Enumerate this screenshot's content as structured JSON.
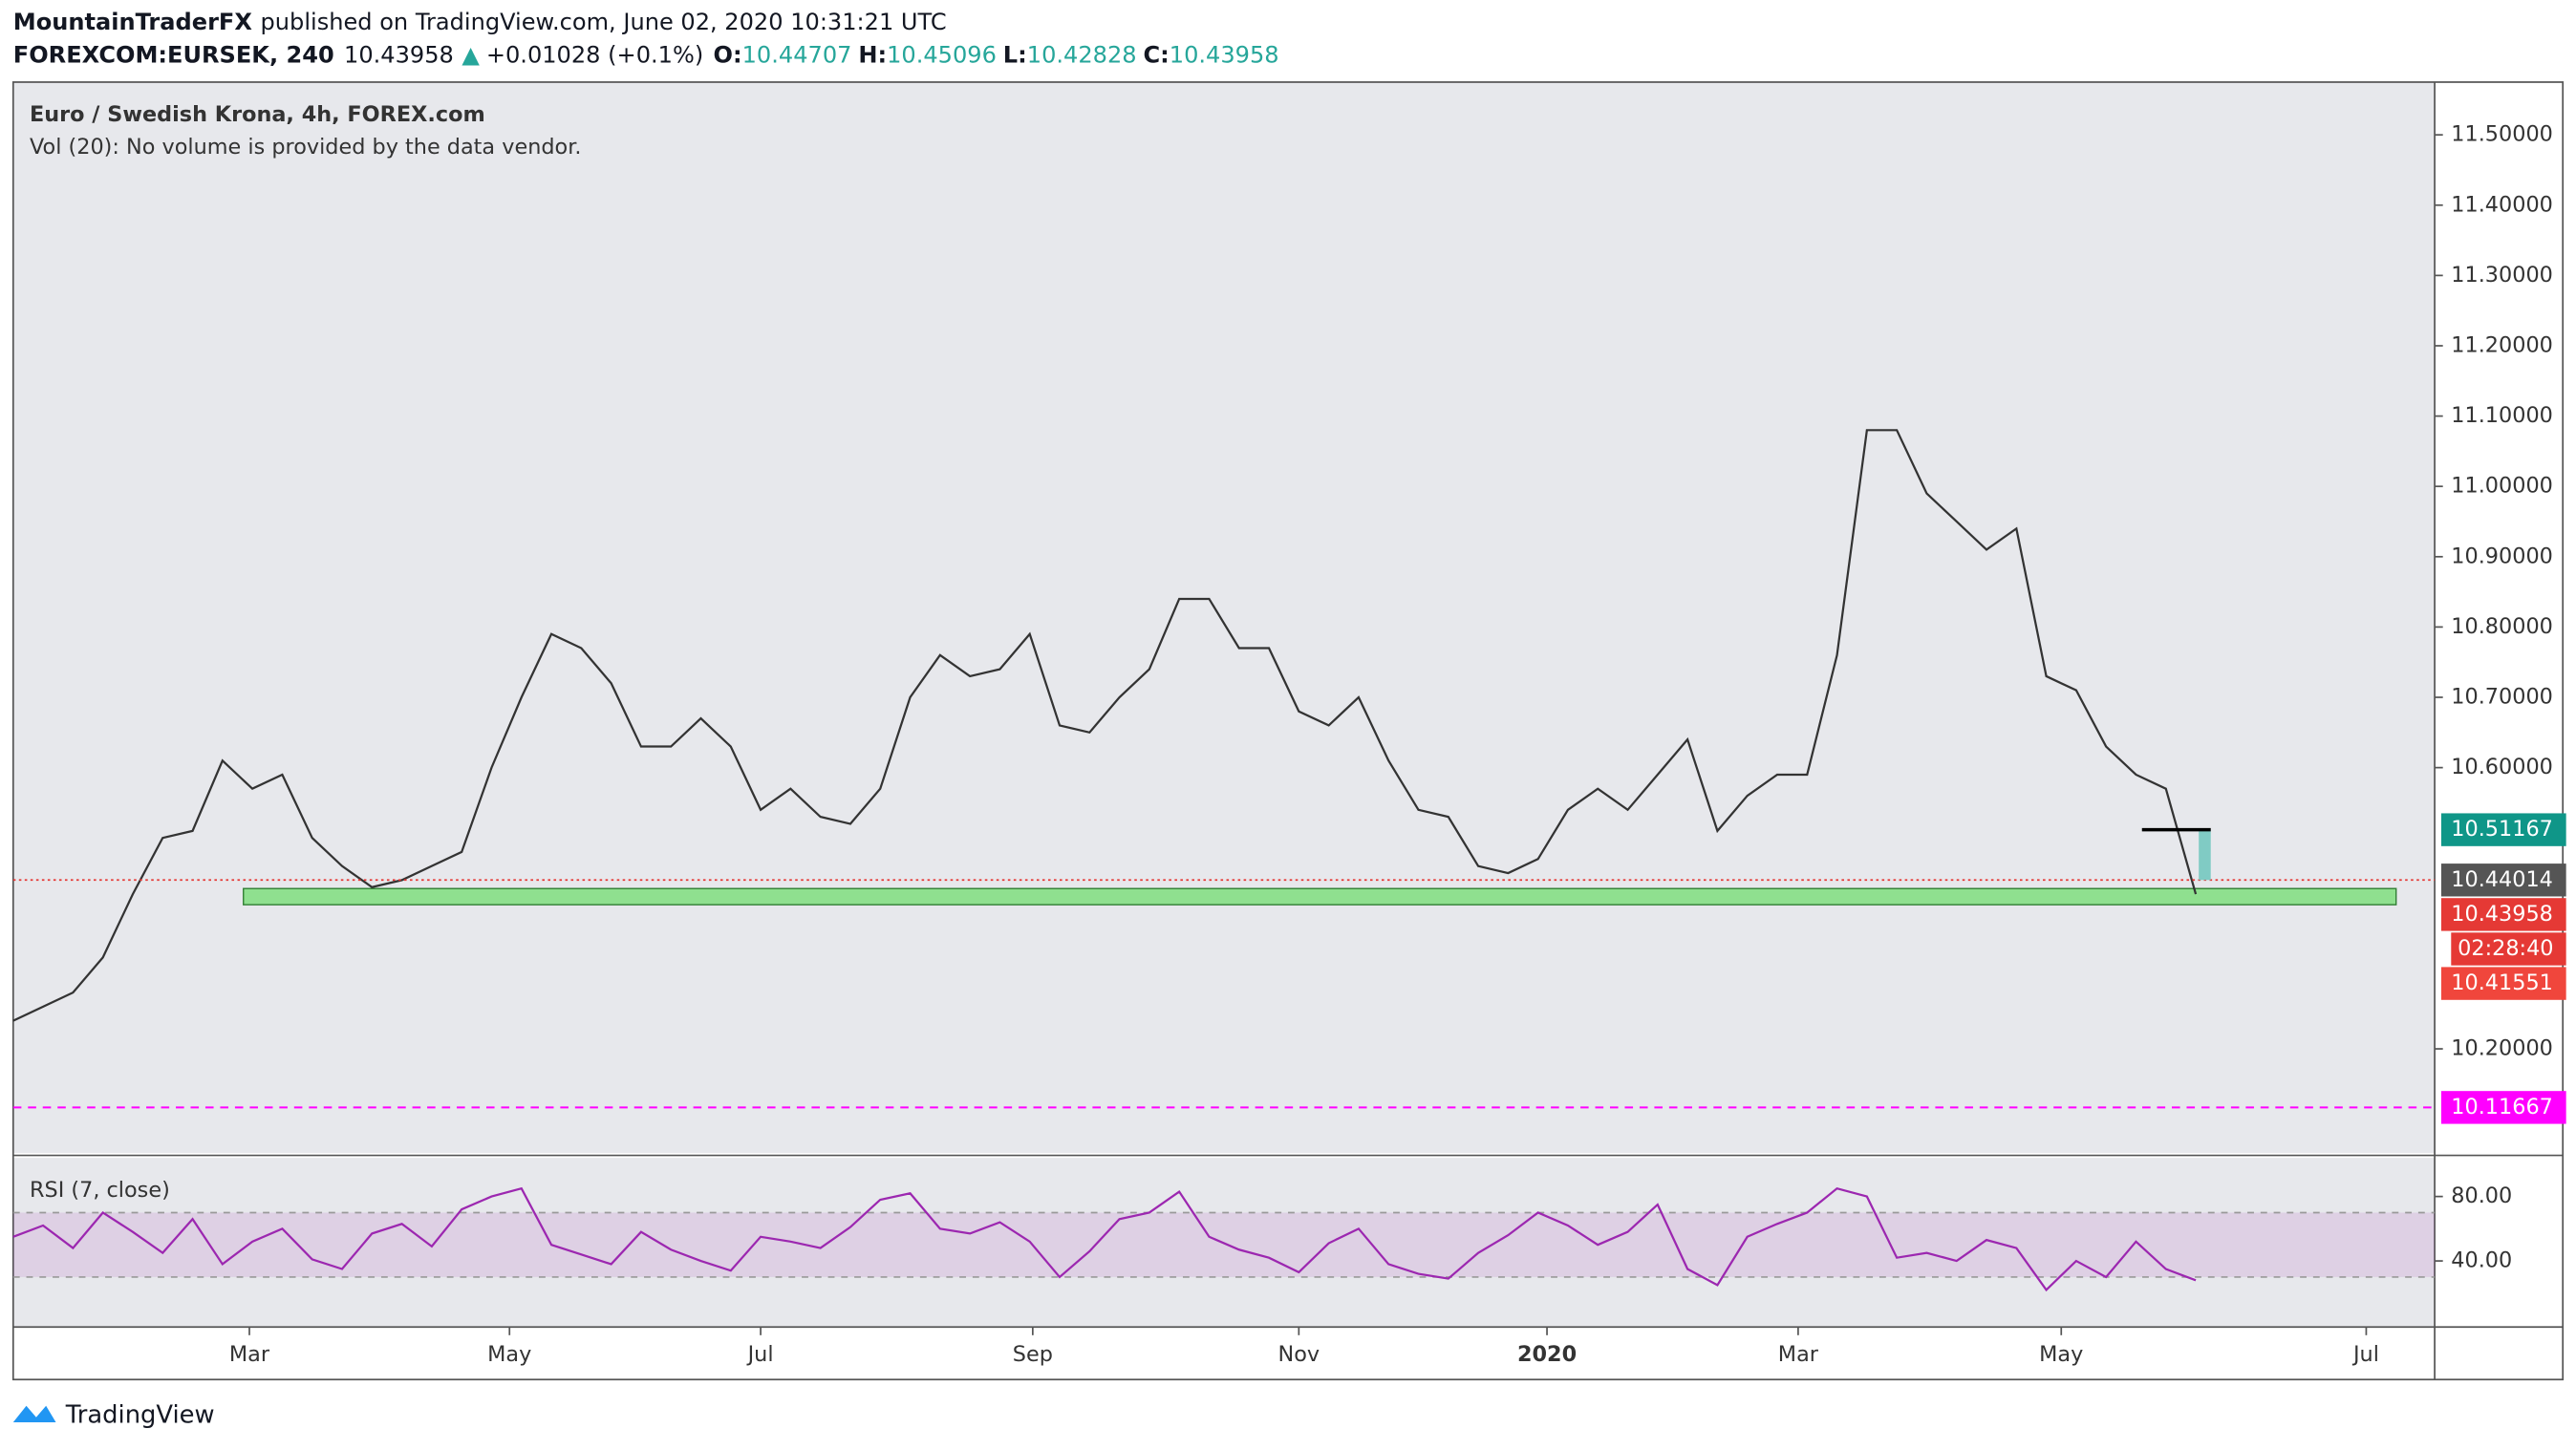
{
  "header": {
    "publisher": "MountainTraderFX",
    "published": "published on TradingView.com, June 02, 2020 10:31:21 UTC",
    "symbol": "FOREXCOM:EURSEK, 240",
    "last": "10.43958",
    "arrow": "▲",
    "change": "+0.01028 (+0.1%)",
    "o_label": "O:",
    "o": "10.44707",
    "h_label": "H:",
    "h": "10.45096",
    "l_label": "L:",
    "l": "10.42828",
    "c_label": "C:",
    "c": "10.43958"
  },
  "footer": {
    "brand": "TradingView"
  },
  "chart_data": [
    {
      "type": "line",
      "title": "Euro / Swedish Krona, 4h, FOREX.com",
      "subtitle": "Vol (20): No volume is provided by the data vendor.",
      "x": [
        0,
        1,
        2,
        3,
        4,
        5,
        6,
        7,
        8,
        9,
        10,
        11,
        12,
        13,
        14,
        15,
        16,
        17,
        18,
        19,
        20,
        21,
        22,
        23,
        24,
        25,
        26,
        27,
        28,
        29,
        30,
        31,
        32,
        33,
        34,
        35,
        36,
        37,
        38,
        39,
        40,
        41,
        42,
        43,
        44,
        45,
        46,
        47,
        48,
        49,
        50,
        51,
        52,
        53,
        54,
        55,
        56,
        57,
        58,
        59,
        60,
        61,
        62,
        63,
        64,
        65,
        66,
        67,
        68,
        69,
        70,
        71,
        72,
        73
      ],
      "values": [
        10.24,
        10.26,
        10.28,
        10.33,
        10.42,
        10.5,
        10.51,
        10.61,
        10.57,
        10.59,
        10.5,
        10.46,
        10.43,
        10.44,
        10.46,
        10.48,
        10.6,
        10.7,
        10.79,
        10.77,
        10.72,
        10.63,
        10.63,
        10.67,
        10.63,
        10.54,
        10.57,
        10.53,
        10.52,
        10.57,
        10.7,
        10.76,
        10.73,
        10.74,
        10.79,
        10.66,
        10.65,
        10.7,
        10.74,
        10.84,
        10.84,
        10.77,
        10.77,
        10.68,
        10.66,
        10.7,
        10.61,
        10.54,
        10.53,
        10.46,
        10.45,
        10.47,
        10.54,
        10.57,
        10.54,
        10.59,
        10.64,
        10.51,
        10.56,
        10.59,
        10.59,
        10.76,
        11.08,
        11.08,
        10.99,
        10.95,
        10.91,
        10.94,
        10.73,
        10.71,
        10.63,
        10.59,
        10.57,
        10.42
      ],
      "color": "#333333",
      "xlim": [
        0,
        80.99
      ],
      "xticks": [
        {
          "value": 7.9,
          "label": "Mar"
        },
        {
          "value": 16.6,
          "label": "May"
        },
        {
          "value": 25.0,
          "label": "Jul"
        },
        {
          "value": 34.1,
          "label": "Sep"
        },
        {
          "value": 43.0,
          "label": "Nov"
        },
        {
          "value": 51.3,
          "label": "2020"
        },
        {
          "value": 59.7,
          "label": "Mar"
        },
        {
          "value": 68.5,
          "label": "May"
        },
        {
          "value": 78.7,
          "label": "Jul"
        }
      ],
      "ylim": [
        10.052,
        11.575
      ],
      "yticks": [
        {
          "value": 11.5,
          "label": "11.50000"
        },
        {
          "value": 11.4,
          "label": "11.40000"
        },
        {
          "value": 11.3,
          "label": "11.30000"
        },
        {
          "value": 11.2,
          "label": "11.20000"
        },
        {
          "value": 11.1,
          "label": "11.10000"
        },
        {
          "value": 11.0,
          "label": "11.00000"
        },
        {
          "value": 10.9,
          "label": "10.90000"
        },
        {
          "value": 10.8,
          "label": "10.80000"
        },
        {
          "value": 10.7,
          "label": "10.70000"
        },
        {
          "value": 10.6,
          "label": "10.60000"
        },
        {
          "value": 10.2,
          "label": "10.20000"
        }
      ],
      "grid": false,
      "zone": {
        "x": [
          7.7,
          79.7
        ],
        "y": [
          10.405,
          10.428
        ],
        "color": "#8fe08f"
      },
      "target_line": {
        "x": [
          71.2,
          73.5
        ],
        "value": 10.51167
      },
      "target_box": {
        "x": [
          73.1,
          73.5
        ],
        "y": [
          10.44014,
          10.51167
        ],
        "color": "#80cbc4"
      },
      "price_line": {
        "value": 10.44014,
        "color": "#e53935"
      },
      "level_line": {
        "value": 10.11667,
        "color": "#ff00ff"
      },
      "tags": [
        {
          "value": 10.51167,
          "color": "#0f9688"
        },
        {
          "value": 10.44014,
          "color": "#555555"
        },
        {
          "value": 10.43958,
          "color": "#e53935"
        },
        {
          "value": 10.41551,
          "color": "#f0463c"
        }
      ],
      "countdown": "02:28:40",
      "level_tag": {
        "value": 10.11667,
        "color": "#ff00ff"
      }
    },
    {
      "type": "line",
      "title": "RSI (7, close)",
      "x": [
        0,
        1,
        2,
        3,
        4,
        5,
        6,
        7,
        8,
        9,
        10,
        11,
        12,
        13,
        14,
        15,
        16,
        17,
        18,
        19,
        20,
        21,
        22,
        23,
        24,
        25,
        26,
        27,
        28,
        29,
        30,
        31,
        32,
        33,
        34,
        35,
        36,
        37,
        38,
        39,
        40,
        41,
        42,
        43,
        44,
        45,
        46,
        47,
        48,
        49,
        50,
        51,
        52,
        53,
        54,
        55,
        56,
        57,
        58,
        59,
        60,
        61,
        62,
        63,
        64,
        65,
        66,
        67,
        68,
        69,
        70,
        71,
        72,
        73
      ],
      "values": [
        55,
        62,
        48,
        70,
        58,
        45,
        66,
        38,
        52,
        60,
        41,
        35,
        57,
        63,
        49,
        72,
        80,
        85,
        50,
        44,
        38,
        58,
        47,
        40,
        34,
        55,
        52,
        48,
        61,
        78,
        82,
        60,
        57,
        64,
        52,
        30,
        46,
        66,
        70,
        83,
        55,
        47,
        42,
        33,
        51,
        60,
        38,
        32,
        29,
        45,
        56,
        70,
        62,
        50,
        58,
        75,
        35,
        25,
        55,
        63,
        70,
        85,
        80,
        42,
        45,
        40,
        53,
        48,
        22,
        40,
        30,
        52,
        35,
        28
      ],
      "color": "#9c27b0",
      "ylim": [
        -1,
        104
      ],
      "yticks": [
        {
          "value": 80,
          "label": "80.00"
        },
        {
          "value": 40,
          "label": "40.00"
        }
      ],
      "band": [
        30,
        70
      ]
    }
  ]
}
